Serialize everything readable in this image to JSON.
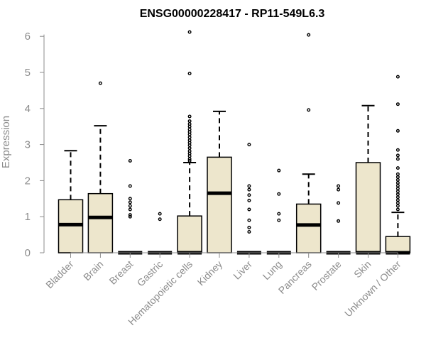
{
  "chart_data": {
    "type": "box",
    "title": "ENSG00000228417 - RP11-549L6.3",
    "xlabel": "",
    "ylabel": "Expression",
    "ylim": [
      0,
      6.2
    ],
    "yticks": [
      0,
      1,
      2,
      3,
      4,
      5,
      6
    ],
    "grid": false,
    "legend": "none",
    "colors": {
      "box_fill": "#ede6cc",
      "box_stroke": "#000000",
      "tick_text": "#8c8c8c",
      "axis": "#8c8c8c"
    },
    "categories": [
      "Bladder",
      "Brain",
      "Breast",
      "Gastric",
      "Hematopoietic cells",
      "Kidney",
      "Liver",
      "Lung",
      "Pancreas",
      "Prostate",
      "Skin",
      "Unknown / Other"
    ],
    "boxes": [
      {
        "q1": 0.0,
        "median": 0.78,
        "q3": 1.47,
        "whisker_low": 0,
        "whisker_high": 2.83,
        "outliers": []
      },
      {
        "q1": 0.0,
        "median": 0.98,
        "q3": 1.64,
        "whisker_low": 0,
        "whisker_high": 3.52,
        "outliers": [
          4.7
        ]
      },
      {
        "q1": 0.0,
        "median": 0.0,
        "q3": 0.0,
        "whisker_low": 0,
        "whisker_high": 0,
        "outliers": [
          1.0,
          1.05,
          1.2,
          1.3,
          1.4,
          1.5,
          1.85,
          2.55
        ]
      },
      {
        "q1": 0.0,
        "median": 0.0,
        "q3": 0.0,
        "whisker_low": 0,
        "whisker_high": 0,
        "outliers": [
          0.93,
          1.08
        ]
      },
      {
        "q1": 0.0,
        "median": 0.0,
        "q3": 1.02,
        "whisker_low": 0,
        "whisker_high": 2.5,
        "outliers": [
          2.55,
          2.6,
          2.68,
          2.75,
          2.82,
          2.9,
          2.98,
          3.05,
          3.12,
          3.2,
          3.28,
          3.35,
          3.42,
          3.5,
          3.57,
          3.65,
          3.78,
          4.97,
          6.12
        ]
      },
      {
        "q1": 0.0,
        "median": 1.65,
        "q3": 2.65,
        "whisker_low": 0,
        "whisker_high": 3.92,
        "outliers": []
      },
      {
        "q1": 0.0,
        "median": 0.0,
        "q3": 0.0,
        "whisker_low": 0,
        "whisker_high": 0,
        "outliers": [
          0.58,
          0.7,
          0.9,
          1.2,
          1.45,
          1.6,
          1.75,
          1.85,
          3.0
        ]
      },
      {
        "q1": 0.0,
        "median": 0.0,
        "q3": 0.0,
        "whisker_low": 0,
        "whisker_high": 0,
        "outliers": [
          0.9,
          1.08,
          1.63,
          2.28
        ]
      },
      {
        "q1": 0.0,
        "median": 0.77,
        "q3": 1.35,
        "whisker_low": 0,
        "whisker_high": 2.18,
        "outliers": [
          3.96,
          6.04
        ]
      },
      {
        "q1": 0.0,
        "median": 0.0,
        "q3": 0.0,
        "whisker_low": 0,
        "whisker_high": 0,
        "outliers": [
          0.88,
          1.38,
          1.75,
          1.85
        ]
      },
      {
        "q1": 0.0,
        "median": 0.0,
        "q3": 2.5,
        "whisker_low": 0,
        "whisker_high": 4.08,
        "outliers": []
      },
      {
        "q1": 0.0,
        "median": 0.0,
        "q3": 0.45,
        "whisker_low": 0,
        "whisker_high": 1.12,
        "outliers": [
          1.2,
          1.3,
          1.38,
          1.46,
          1.54,
          1.62,
          1.7,
          1.78,
          1.86,
          1.94,
          2.02,
          2.1,
          2.18,
          2.35,
          2.6,
          2.7,
          2.85,
          3.38,
          4.12,
          4.88
        ]
      }
    ]
  }
}
